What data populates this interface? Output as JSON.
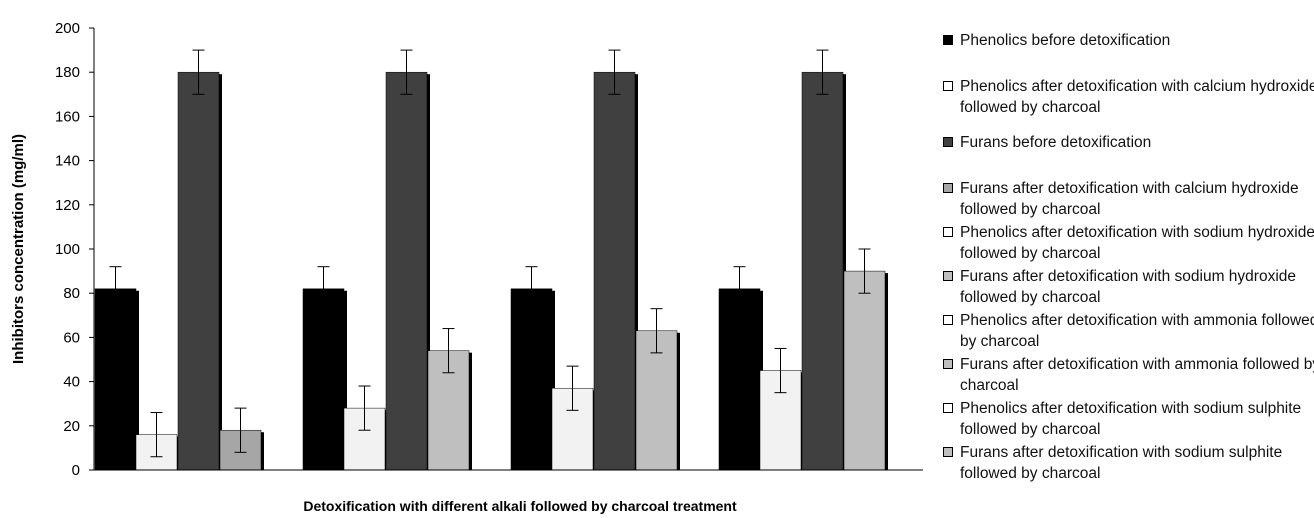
{
  "chart_data": {
    "type": "bar",
    "title": "",
    "xlabel": "Detoxification with different alkali followed by charcoal treatment",
    "ylabel": "Inhibitors concentration (mg/ml)",
    "ylim": [
      0,
      200
    ],
    "yticks": [
      "0",
      "20",
      "40",
      "60",
      "80",
      "100",
      "120",
      "140",
      "160",
      "180",
      "200"
    ],
    "grid": false,
    "legend_position": "right",
    "groups": [
      {
        "bars": [
          {
            "series": "Phenolics before detoxification",
            "value": 82,
            "error": 10,
            "color": "#000000"
          },
          {
            "series": "Phenolics after detoxification with calcium hydroxide followed by charcoal",
            "value": 16,
            "error": 10,
            "color": "#f2f2f2"
          },
          {
            "series": "Furans before detoxification",
            "value": 180,
            "error": 10,
            "color": "#404040"
          },
          {
            "series": "Furans after detoxification with calcium hydroxide followed by charcoal",
            "value": 18,
            "error": 10,
            "color": "#a6a6a6"
          }
        ]
      },
      {
        "bars": [
          {
            "series": "Phenolics before detoxification",
            "value": 82,
            "error": 10,
            "color": "#000000"
          },
          {
            "series": "Phenolics after detoxification with sodium hydroxide followed by charcoal",
            "value": 28,
            "error": 10,
            "color": "#f2f2f2"
          },
          {
            "series": "Furans before detoxification",
            "value": 180,
            "error": 10,
            "color": "#404040"
          },
          {
            "series": "Furans after detoxification with sodium hydroxide followed by charcoal",
            "value": 54,
            "error": 10,
            "color": "#bfbfbf"
          }
        ]
      },
      {
        "bars": [
          {
            "series": "Phenolics before detoxification",
            "value": 82,
            "error": 10,
            "color": "#000000"
          },
          {
            "series": "Phenolics after detoxification with ammonia followed by charcoal",
            "value": 37,
            "error": 10,
            "color": "#f2f2f2"
          },
          {
            "series": "Furans before detoxification",
            "value": 180,
            "error": 10,
            "color": "#404040"
          },
          {
            "series": "Furans after detoxification with ammonia followed by charcoal",
            "value": 63,
            "error": 10,
            "color": "#bfbfbf"
          }
        ]
      },
      {
        "bars": [
          {
            "series": "Phenolics before detoxification",
            "value": 82,
            "error": 10,
            "color": "#000000"
          },
          {
            "series": "Phenolics after detoxification with sodium sulphite followed by charcoal",
            "value": 45,
            "error": 10,
            "color": "#f2f2f2"
          },
          {
            "series": "Furans before detoxification",
            "value": 180,
            "error": 10,
            "color": "#404040"
          },
          {
            "series": "Furans after detoxification with sodium sulphite followed by charcoal",
            "value": 90,
            "error": 10,
            "color": "#bfbfbf"
          }
        ]
      }
    ]
  },
  "legend": [
    {
      "label": "Phenolics before detoxification",
      "color": "#000000"
    },
    {
      "label": "Phenolics after detoxification with calcium hydroxide followed by charcoal",
      "color": "#ffffff"
    },
    {
      "label": "Furans before detoxification",
      "color": "#404040"
    },
    {
      "label": "Furans after detoxification with calcium hydroxide followed by charcoal",
      "color": "#a6a6a6"
    },
    {
      "label": "Phenolics after detoxification with sodium hydroxide followed by charcoal",
      "color": "#ffffff"
    },
    {
      "label": "Furans after detoxification with sodium hydroxide followed by charcoal",
      "color": "#bfbfbf"
    },
    {
      "label": "Phenolics after detoxification with ammonia followed by charcoal",
      "color": "#ffffff"
    },
    {
      "label": "Furans after detoxification with ammonia followed by charcoal",
      "color": "#bfbfbf"
    },
    {
      "label": "Phenolics after detoxification with sodium sulphite followed by charcoal",
      "color": "#ffffff"
    },
    {
      "label": "Furans after detoxification with sodium sulphite followed by charcoal",
      "color": "#bfbfbf"
    }
  ]
}
